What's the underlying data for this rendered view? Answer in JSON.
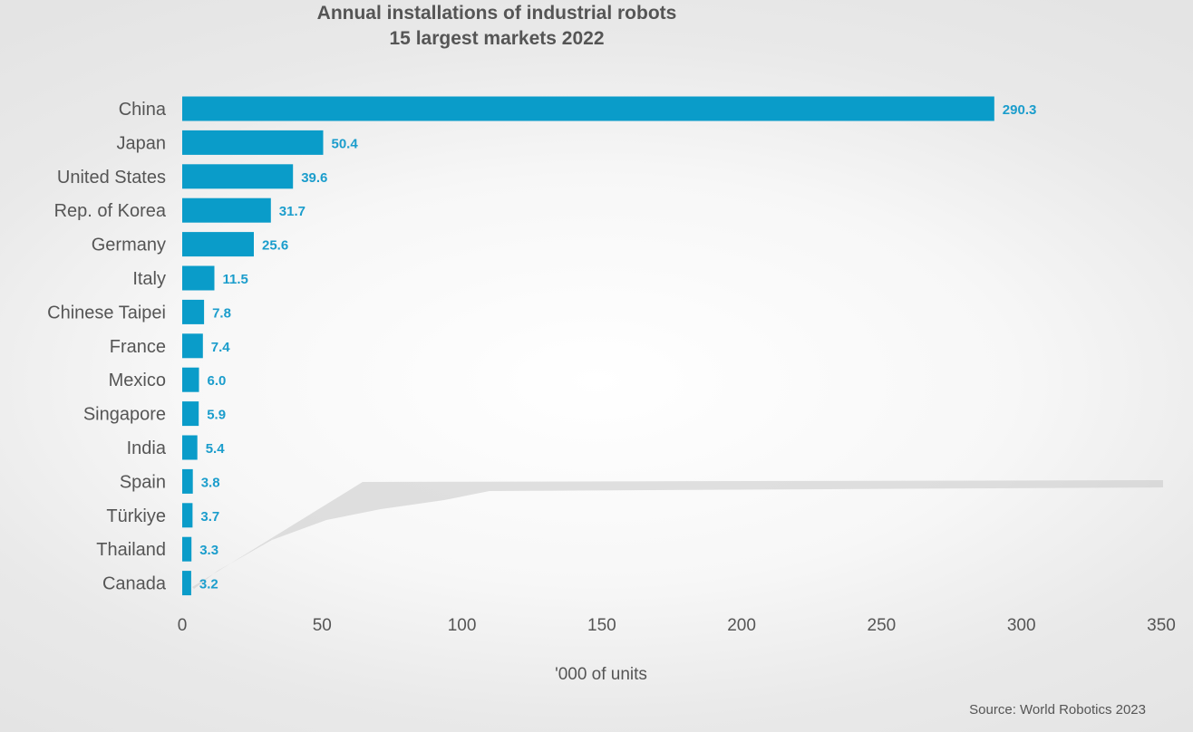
{
  "chart_data": {
    "type": "bar",
    "orientation": "horizontal",
    "title": "Annual installations of industrial robots",
    "subtitle": "15 largest markets 2022",
    "categories": [
      "China",
      "Japan",
      "United States",
      "Rep. of Korea",
      "Germany",
      "Italy",
      "Chinese Taipei",
      "France",
      "Mexico",
      "Singapore",
      "India",
      "Spain",
      "Türkiye",
      "Thailand",
      "Canada"
    ],
    "values": [
      290.3,
      50.4,
      39.6,
      31.7,
      25.6,
      11.5,
      7.8,
      7.4,
      6.0,
      5.9,
      5.4,
      3.8,
      3.7,
      3.3,
      3.2
    ],
    "value_labels": [
      "290.3",
      "50.4",
      "39.6",
      "31.7",
      "25.6",
      "11.5",
      "7.8",
      "7.4",
      "6.0",
      "5.9",
      "5.4",
      "3.8",
      "3.7",
      "3.3",
      "3.2"
    ],
    "xlabel": "'000 of units",
    "ylabel": "",
    "xlim": [
      0,
      350
    ],
    "xticks": [
      "0",
      "50",
      "100",
      "150",
      "200",
      "250",
      "300",
      "350"
    ],
    "grid": false,
    "legend": "none",
    "bar_color": "#0a9cc9",
    "label_color": "#1b9dcc",
    "source": "Source: World Robotics 2023"
  }
}
